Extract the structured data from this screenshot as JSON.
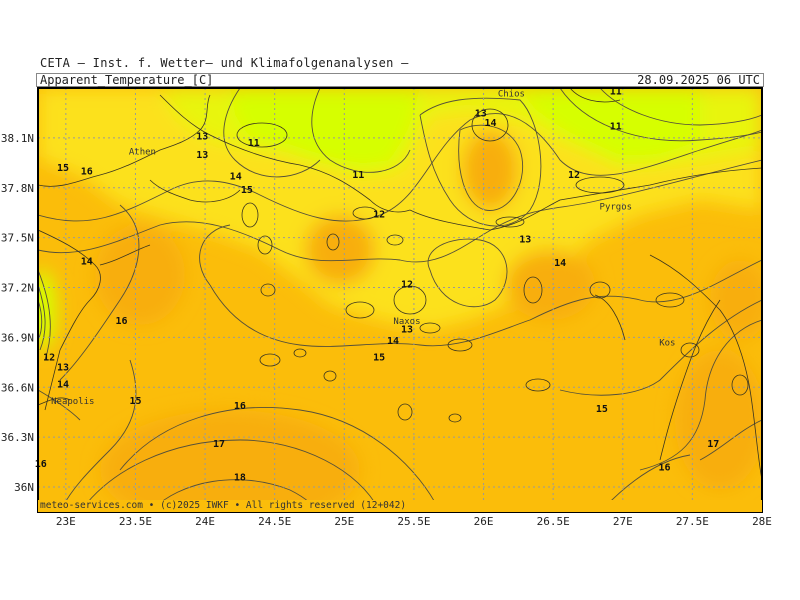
{
  "header": {
    "institute": "CETA — Inst. f. Wetter— und Klimafolgenanalysen —",
    "parameter": "Apparent_Temperature_[C]",
    "valid_time": "28.09.2025 06 UTC"
  },
  "footer": "meteo-services.com • (c)2025 IWKF • All rights reserved (12+042)",
  "axes": {
    "lat_labels": [
      "38.1N",
      "37.8N",
      "37.5N",
      "37.2N",
      "36.9N",
      "36.6N",
      "36.3N",
      "36N"
    ],
    "lat_values": [
      38.1,
      37.8,
      37.5,
      37.2,
      36.9,
      36.6,
      36.3,
      36.0
    ],
    "lon_labels": [
      "23E",
      "23.5E",
      "24E",
      "24.5E",
      "25E",
      "25.5E",
      "26E",
      "26.5E",
      "27E",
      "27.5E",
      "28E"
    ],
    "lon_values": [
      23,
      23.5,
      24,
      24.5,
      25,
      25.5,
      26,
      26.5,
      27,
      27.5,
      28
    ],
    "lon_range": [
      22.8,
      28.0
    ],
    "lat_range": [
      35.85,
      38.4
    ]
  },
  "places": [
    {
      "name": "Athen",
      "lon": 23.55,
      "lat": 38.0
    },
    {
      "name": "Chios",
      "lon": 26.2,
      "lat": 38.35
    },
    {
      "name": "Pyrgos",
      "lon": 26.95,
      "lat": 37.67
    },
    {
      "name": "Naxos",
      "lon": 25.45,
      "lat": 36.98
    },
    {
      "name": "Kos",
      "lon": 27.32,
      "lat": 36.85
    },
    {
      "name": "Neapolis",
      "lon": 23.05,
      "lat": 36.5
    }
  ],
  "contour_labels": [
    {
      "text": "11",
      "lon": 24.35,
      "lat": 38.05
    },
    {
      "text": "11",
      "lon": 25.1,
      "lat": 37.86
    },
    {
      "text": "11",
      "lon": 26.95,
      "lat": 38.15
    },
    {
      "text": "11",
      "lon": 26.95,
      "lat": 38.36
    },
    {
      "text": "12",
      "lon": 25.25,
      "lat": 37.62
    },
    {
      "text": "12",
      "lon": 26.65,
      "lat": 37.86
    },
    {
      "text": "12",
      "lon": 25.45,
      "lat": 37.2
    },
    {
      "text": "12",
      "lon": 22.88,
      "lat": 36.76
    },
    {
      "text": "13",
      "lon": 23.98,
      "lat": 38.09
    },
    {
      "text": "13",
      "lon": 23.98,
      "lat": 37.98
    },
    {
      "text": "13",
      "lon": 25.98,
      "lat": 38.23
    },
    {
      "text": "13",
      "lon": 26.3,
      "lat": 37.47
    },
    {
      "text": "13",
      "lon": 25.45,
      "lat": 36.93
    },
    {
      "text": "13",
      "lon": 22.98,
      "lat": 36.7
    },
    {
      "text": "14",
      "lon": 26.05,
      "lat": 38.17
    },
    {
      "text": "14",
      "lon": 24.22,
      "lat": 37.85
    },
    {
      "text": "14",
      "lon": 23.15,
      "lat": 37.34
    },
    {
      "text": "14",
      "lon": 26.55,
      "lat": 37.33
    },
    {
      "text": "14",
      "lon": 25.35,
      "lat": 36.86
    },
    {
      "text": "14",
      "lon": 22.98,
      "lat": 36.6
    },
    {
      "text": "15",
      "lon": 22.98,
      "lat": 37.9
    },
    {
      "text": "15",
      "lon": 24.3,
      "lat": 37.77
    },
    {
      "text": "15",
      "lon": 25.25,
      "lat": 36.76
    },
    {
      "text": "15",
      "lon": 23.5,
      "lat": 36.5
    },
    {
      "text": "15",
      "lon": 26.85,
      "lat": 36.45
    },
    {
      "text": "16",
      "lon": 23.15,
      "lat": 37.88
    },
    {
      "text": "16",
      "lon": 23.4,
      "lat": 36.98
    },
    {
      "text": "16",
      "lon": 24.25,
      "lat": 36.47
    },
    {
      "text": "16",
      "lon": 22.82,
      "lat": 36.12
    },
    {
      "text": "16",
      "lon": 27.3,
      "lat": 36.1
    },
    {
      "text": "17",
      "lon": 24.1,
      "lat": 36.24
    },
    {
      "text": "17",
      "lon": 27.65,
      "lat": 36.24
    },
    {
      "text": "18",
      "lon": 24.25,
      "lat": 36.04
    }
  ],
  "colors": {
    "field_base": "#fbbd0a",
    "field_warm": "#f8ae0c",
    "field_cool": "#fce11c",
    "field_coldest": "#d6ff06",
    "field_light_green": "#e8f50e",
    "contour": "#55503a",
    "grid": "#999999",
    "frame": "#000000"
  }
}
